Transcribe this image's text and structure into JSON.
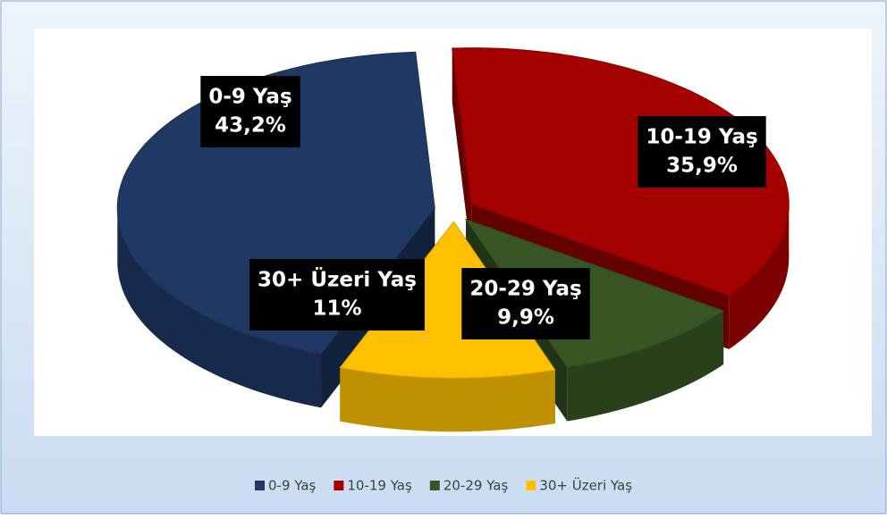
{
  "chart_data": {
    "type": "pie",
    "categories": [
      "0-9 Yaş",
      "10-19 Yaş",
      "20-29 Yaş",
      "30+ Üzeri Yaş"
    ],
    "values": [
      43.2,
      35.9,
      9.9,
      11
    ],
    "value_labels": [
      "43,2%",
      "35,9%",
      "9,9%",
      "11%"
    ],
    "colors": [
      "#203864",
      "#a50000",
      "#375623",
      "#ffc000"
    ],
    "legend": "bottom"
  }
}
